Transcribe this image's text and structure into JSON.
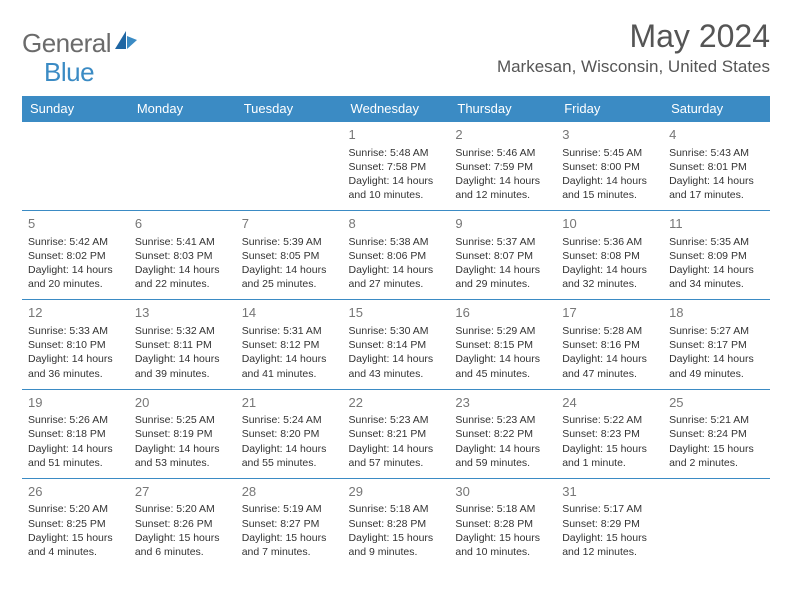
{
  "logo": {
    "part1": "General",
    "part2": "Blue"
  },
  "title": "May 2024",
  "location": "Markesan, Wisconsin, United States",
  "colors": {
    "header_bg": "#3b8bc4",
    "header_text": "#ffffff",
    "border": "#3b8bc4",
    "title_color": "#555555",
    "logo_gray": "#6b6b6b",
    "logo_blue": "#3b8bc4",
    "daynum_color": "#777777",
    "body_text": "#333333",
    "background": "#ffffff"
  },
  "typography": {
    "title_fontsize": 32,
    "location_fontsize": 17,
    "logo_fontsize": 26,
    "dayheader_fontsize": 13,
    "daynum_fontsize": 13,
    "cell_fontsize": 10.5
  },
  "day_headers": [
    "Sunday",
    "Monday",
    "Tuesday",
    "Wednesday",
    "Thursday",
    "Friday",
    "Saturday"
  ],
  "weeks": [
    [
      null,
      null,
      null,
      {
        "d": "1",
        "sr": "5:48 AM",
        "ss": "7:58 PM",
        "dl": "14 hours and 10 minutes."
      },
      {
        "d": "2",
        "sr": "5:46 AM",
        "ss": "7:59 PM",
        "dl": "14 hours and 12 minutes."
      },
      {
        "d": "3",
        "sr": "5:45 AM",
        "ss": "8:00 PM",
        "dl": "14 hours and 15 minutes."
      },
      {
        "d": "4",
        "sr": "5:43 AM",
        "ss": "8:01 PM",
        "dl": "14 hours and 17 minutes."
      }
    ],
    [
      {
        "d": "5",
        "sr": "5:42 AM",
        "ss": "8:02 PM",
        "dl": "14 hours and 20 minutes."
      },
      {
        "d": "6",
        "sr": "5:41 AM",
        "ss": "8:03 PM",
        "dl": "14 hours and 22 minutes."
      },
      {
        "d": "7",
        "sr": "5:39 AM",
        "ss": "8:05 PM",
        "dl": "14 hours and 25 minutes."
      },
      {
        "d": "8",
        "sr": "5:38 AM",
        "ss": "8:06 PM",
        "dl": "14 hours and 27 minutes."
      },
      {
        "d": "9",
        "sr": "5:37 AM",
        "ss": "8:07 PM",
        "dl": "14 hours and 29 minutes."
      },
      {
        "d": "10",
        "sr": "5:36 AM",
        "ss": "8:08 PM",
        "dl": "14 hours and 32 minutes."
      },
      {
        "d": "11",
        "sr": "5:35 AM",
        "ss": "8:09 PM",
        "dl": "14 hours and 34 minutes."
      }
    ],
    [
      {
        "d": "12",
        "sr": "5:33 AM",
        "ss": "8:10 PM",
        "dl": "14 hours and 36 minutes."
      },
      {
        "d": "13",
        "sr": "5:32 AM",
        "ss": "8:11 PM",
        "dl": "14 hours and 39 minutes."
      },
      {
        "d": "14",
        "sr": "5:31 AM",
        "ss": "8:12 PM",
        "dl": "14 hours and 41 minutes."
      },
      {
        "d": "15",
        "sr": "5:30 AM",
        "ss": "8:14 PM",
        "dl": "14 hours and 43 minutes."
      },
      {
        "d": "16",
        "sr": "5:29 AM",
        "ss": "8:15 PM",
        "dl": "14 hours and 45 minutes."
      },
      {
        "d": "17",
        "sr": "5:28 AM",
        "ss": "8:16 PM",
        "dl": "14 hours and 47 minutes."
      },
      {
        "d": "18",
        "sr": "5:27 AM",
        "ss": "8:17 PM",
        "dl": "14 hours and 49 minutes."
      }
    ],
    [
      {
        "d": "19",
        "sr": "5:26 AM",
        "ss": "8:18 PM",
        "dl": "14 hours and 51 minutes."
      },
      {
        "d": "20",
        "sr": "5:25 AM",
        "ss": "8:19 PM",
        "dl": "14 hours and 53 minutes."
      },
      {
        "d": "21",
        "sr": "5:24 AM",
        "ss": "8:20 PM",
        "dl": "14 hours and 55 minutes."
      },
      {
        "d": "22",
        "sr": "5:23 AM",
        "ss": "8:21 PM",
        "dl": "14 hours and 57 minutes."
      },
      {
        "d": "23",
        "sr": "5:23 AM",
        "ss": "8:22 PM",
        "dl": "14 hours and 59 minutes."
      },
      {
        "d": "24",
        "sr": "5:22 AM",
        "ss": "8:23 PM",
        "dl": "15 hours and 1 minute."
      },
      {
        "d": "25",
        "sr": "5:21 AM",
        "ss": "8:24 PM",
        "dl": "15 hours and 2 minutes."
      }
    ],
    [
      {
        "d": "26",
        "sr": "5:20 AM",
        "ss": "8:25 PM",
        "dl": "15 hours and 4 minutes."
      },
      {
        "d": "27",
        "sr": "5:20 AM",
        "ss": "8:26 PM",
        "dl": "15 hours and 6 minutes."
      },
      {
        "d": "28",
        "sr": "5:19 AM",
        "ss": "8:27 PM",
        "dl": "15 hours and 7 minutes."
      },
      {
        "d": "29",
        "sr": "5:18 AM",
        "ss": "8:28 PM",
        "dl": "15 hours and 9 minutes."
      },
      {
        "d": "30",
        "sr": "5:18 AM",
        "ss": "8:28 PM",
        "dl": "15 hours and 10 minutes."
      },
      {
        "d": "31",
        "sr": "5:17 AM",
        "ss": "8:29 PM",
        "dl": "15 hours and 12 minutes."
      },
      null
    ]
  ],
  "labels": {
    "sunrise": "Sunrise: ",
    "sunset": "Sunset: ",
    "daylight": "Daylight: "
  }
}
